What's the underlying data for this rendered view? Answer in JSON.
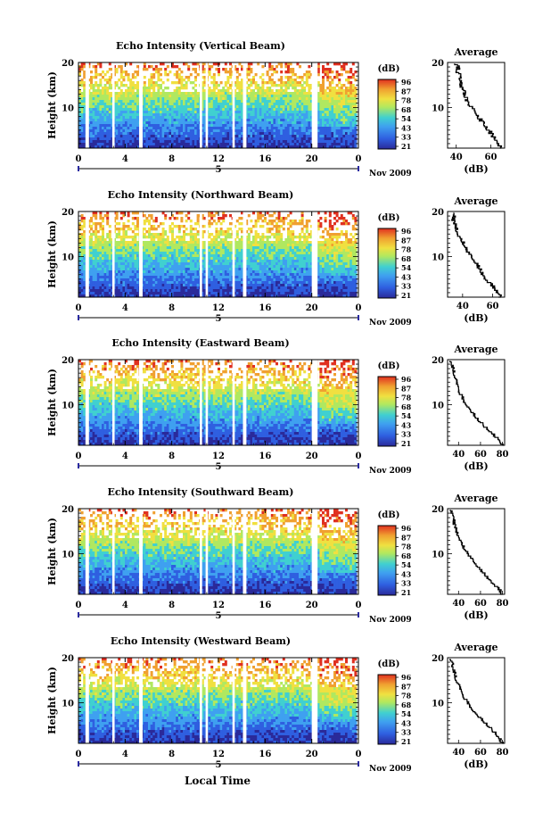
{
  "figure": {
    "xlabel": "Local Time",
    "date_label": "Nov 2009",
    "colorbar_unit": "(dB)",
    "colorbar_ticks": [
      "96",
      "87",
      "78",
      "68",
      "54",
      "43",
      "33",
      "21"
    ],
    "colors": {
      "background": "#ffffff",
      "axis": "#000000",
      "gaps": "#ffffff",
      "palette": [
        "#2a2a9a",
        "#2f5fe0",
        "#3fa0f0",
        "#40d0d0",
        "#b0e860",
        "#f0e040",
        "#f0a030",
        "#e03020"
      ]
    }
  },
  "chart_data": [
    {
      "type": "heatmap",
      "title": "Echo Intensity (Vertical Beam)",
      "ylabel": "Height (km)",
      "x_ticks": [
        "0",
        "4",
        "8",
        "12",
        "16",
        "20",
        "0"
      ],
      "x_day_label": "5",
      "xlim": [
        0,
        24
      ],
      "y_ticks": [
        "20",
        "10"
      ],
      "ylim": [
        1,
        20
      ],
      "z_unit": "dB",
      "zlim": [
        21,
        96
      ],
      "data_gaps_hours": [
        [
          0.6,
          0.9
        ],
        [
          2.9,
          3.1
        ],
        [
          5.2,
          5.5
        ],
        [
          10.4,
          10.6
        ],
        [
          10.9,
          11.1
        ],
        [
          13.2,
          13.4
        ],
        [
          14.1,
          14.4
        ],
        [
          20.0,
          20.5
        ]
      ],
      "profile": {
        "title": "Average",
        "xlabel": "(dB)",
        "x_ticks": [
          "40",
          "60"
        ],
        "xlim": [
          35,
          68
        ],
        "y_ticks": [
          "20",
          "10"
        ],
        "ylim": [
          1,
          20
        ],
        "height_km": [
          1,
          2,
          3,
          4,
          5,
          6,
          7,
          8,
          9,
          10,
          11,
          12,
          13,
          14,
          15,
          16,
          17,
          18,
          19,
          20
        ],
        "values_db": [
          66,
          65,
          63,
          61,
          59,
          57,
          55,
          53,
          51,
          49,
          47,
          46,
          45,
          44,
          43,
          43,
          42,
          41,
          41,
          40
        ]
      }
    },
    {
      "type": "heatmap",
      "title": "Echo Intensity (Northward Beam)",
      "ylabel": "Height (km)",
      "x_ticks": [
        "0",
        "4",
        "8",
        "12",
        "16",
        "20",
        "0"
      ],
      "x_day_label": "5",
      "xlim": [
        0,
        24
      ],
      "y_ticks": [
        "20",
        "10"
      ],
      "ylim": [
        1,
        20
      ],
      "z_unit": "dB",
      "zlim": [
        21,
        96
      ],
      "data_gaps_hours": [
        [
          0.6,
          0.9
        ],
        [
          2.9,
          3.1
        ],
        [
          5.2,
          5.5
        ],
        [
          10.4,
          10.6
        ],
        [
          10.9,
          11.1
        ],
        [
          13.2,
          13.4
        ],
        [
          14.1,
          14.4
        ],
        [
          20.0,
          20.5
        ]
      ],
      "profile": {
        "title": "Average",
        "xlabel": "(dB)",
        "x_ticks": [
          "40",
          "60"
        ],
        "xlim": [
          30,
          68
        ],
        "y_ticks": [
          "20",
          "10"
        ],
        "ylim": [
          1,
          20
        ],
        "height_km": [
          1,
          2,
          3,
          4,
          5,
          6,
          7,
          8,
          9,
          10,
          11,
          12,
          13,
          14,
          15,
          16,
          17,
          18,
          19,
          20
        ],
        "values_db": [
          65,
          64,
          62,
          59,
          56,
          54,
          52,
          50,
          48,
          46,
          44,
          42,
          41,
          39,
          37,
          36,
          35,
          34,
          34,
          33
        ]
      }
    },
    {
      "type": "heatmap",
      "title": "Echo Intensity (Eastward Beam)",
      "ylabel": "Height (km)",
      "x_ticks": [
        "0",
        "4",
        "8",
        "12",
        "16",
        "20",
        "0"
      ],
      "x_day_label": "5",
      "xlim": [
        0,
        24
      ],
      "y_ticks": [
        "20",
        "10"
      ],
      "ylim": [
        1,
        20
      ],
      "z_unit": "dB",
      "zlim": [
        21,
        96
      ],
      "data_gaps_hours": [
        [
          0.6,
          0.9
        ],
        [
          2.9,
          3.1
        ],
        [
          5.2,
          5.5
        ],
        [
          10.4,
          10.6
        ],
        [
          10.9,
          11.1
        ],
        [
          13.2,
          13.4
        ],
        [
          14.1,
          14.4
        ],
        [
          20.0,
          20.5
        ]
      ],
      "profile": {
        "title": "Average",
        "xlabel": "(dB)",
        "x_ticks": [
          "40",
          "60",
          "80"
        ],
        "xlim": [
          30,
          82
        ],
        "y_ticks": [
          "20",
          "10"
        ],
        "ylim": [
          1,
          20
        ],
        "height_km": [
          1,
          2,
          3,
          4,
          5,
          6,
          7,
          8,
          9,
          10,
          11,
          12,
          13,
          14,
          15,
          16,
          17,
          18,
          19,
          20
        ],
        "values_db": [
          80,
          78,
          74,
          70,
          65,
          61,
          57,
          54,
          51,
          48,
          45,
          43,
          41,
          40,
          38,
          37,
          36,
          35,
          34,
          33
        ]
      }
    },
    {
      "type": "heatmap",
      "title": "Echo Intensity (Southward Beam)",
      "ylabel": "Height (km)",
      "x_ticks": [
        "0",
        "4",
        "8",
        "12",
        "16",
        "20",
        "0"
      ],
      "x_day_label": "5",
      "xlim": [
        0,
        24
      ],
      "y_ticks": [
        "20",
        "10"
      ],
      "ylim": [
        1,
        20
      ],
      "z_unit": "dB",
      "zlim": [
        21,
        96
      ],
      "data_gaps_hours": [
        [
          0.6,
          0.9
        ],
        [
          2.9,
          3.1
        ],
        [
          5.2,
          5.5
        ],
        [
          10.4,
          10.6
        ],
        [
          10.9,
          11.1
        ],
        [
          13.2,
          13.4
        ],
        [
          14.1,
          14.4
        ],
        [
          20.0,
          20.5
        ]
      ],
      "profile": {
        "title": "Average",
        "xlabel": "(dB)",
        "x_ticks": [
          "40",
          "60",
          "80"
        ],
        "xlim": [
          30,
          82
        ],
        "y_ticks": [
          "20",
          "10"
        ],
        "ylim": [
          1,
          20
        ],
        "height_km": [
          1,
          2,
          3,
          4,
          5,
          6,
          7,
          8,
          9,
          10,
          11,
          12,
          13,
          14,
          15,
          16,
          17,
          18,
          19,
          20
        ],
        "values_db": [
          80,
          78,
          74,
          70,
          66,
          62,
          58,
          55,
          52,
          49,
          46,
          44,
          42,
          40,
          38,
          37,
          36,
          35,
          34,
          33
        ]
      }
    },
    {
      "type": "heatmap",
      "title": "Echo Intensity (Westward Beam)",
      "ylabel": "Height (km)",
      "x_ticks": [
        "0",
        "4",
        "8",
        "12",
        "16",
        "20",
        "0"
      ],
      "x_day_label": "5",
      "xlim": [
        0,
        24
      ],
      "y_ticks": [
        "20",
        "10"
      ],
      "ylim": [
        1,
        20
      ],
      "z_unit": "dB",
      "zlim": [
        21,
        96
      ],
      "data_gaps_hours": [
        [
          0.6,
          0.9
        ],
        [
          2.9,
          3.1
        ],
        [
          5.2,
          5.5
        ],
        [
          10.4,
          10.6
        ],
        [
          10.9,
          11.1
        ],
        [
          13.2,
          13.4
        ],
        [
          14.1,
          14.4
        ],
        [
          20.0,
          20.5
        ]
      ],
      "profile": {
        "title": "Average",
        "xlabel": "(dB)",
        "x_ticks": [
          "40",
          "60",
          "80"
        ],
        "xlim": [
          30,
          82
        ],
        "y_ticks": [
          "20",
          "10"
        ],
        "ylim": [
          1,
          20
        ],
        "height_km": [
          1,
          2,
          3,
          4,
          5,
          6,
          7,
          8,
          9,
          10,
          11,
          12,
          13,
          14,
          15,
          16,
          17,
          18,
          19,
          20
        ],
        "values_db": [
          80,
          78,
          75,
          71,
          67,
          63,
          59,
          55,
          52,
          49,
          46,
          44,
          42,
          40,
          38,
          37,
          36,
          35,
          34,
          33
        ]
      }
    }
  ]
}
